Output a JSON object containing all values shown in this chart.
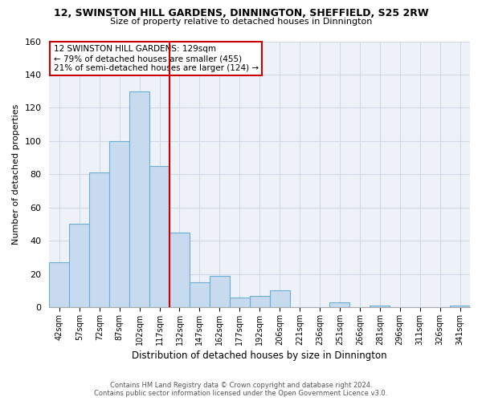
{
  "title": "12, SWINSTON HILL GARDENS, DINNINGTON, SHEFFIELD, S25 2RW",
  "subtitle": "Size of property relative to detached houses in Dinnington",
  "xlabel": "Distribution of detached houses by size in Dinnington",
  "ylabel": "Number of detached properties",
  "bar_labels": [
    "42sqm",
    "57sqm",
    "72sqm",
    "87sqm",
    "102sqm",
    "117sqm",
    "132sqm",
    "147sqm",
    "162sqm",
    "177sqm",
    "192sqm",
    "206sqm",
    "221sqm",
    "236sqm",
    "251sqm",
    "266sqm",
    "281sqm",
    "296sqm",
    "311sqm",
    "326sqm",
    "341sqm"
  ],
  "bar_heights": [
    27,
    50,
    81,
    100,
    130,
    85,
    45,
    15,
    19,
    6,
    7,
    10,
    0,
    0,
    3,
    0,
    1,
    0,
    0,
    0,
    1
  ],
  "bar_color": "#c8daed",
  "bar_edge_color": "#6aaed6",
  "highlight_line_color": "#cc0000",
  "ylim": [
    0,
    160
  ],
  "yticks": [
    0,
    20,
    40,
    60,
    80,
    100,
    120,
    140,
    160
  ],
  "annotation_title": "12 SWINSTON HILL GARDENS: 129sqm",
  "annotation_line1": "← 79% of detached houses are smaller (455)",
  "annotation_line2": "21% of semi-detached houses are larger (124) →",
  "footer1": "Contains HM Land Registry data © Crown copyright and database right 2024.",
  "footer2": "Contains public sector information licensed under the Open Government Licence v3.0.",
  "background_color": "#eef2f8",
  "grid_color": "#d0d8e8"
}
